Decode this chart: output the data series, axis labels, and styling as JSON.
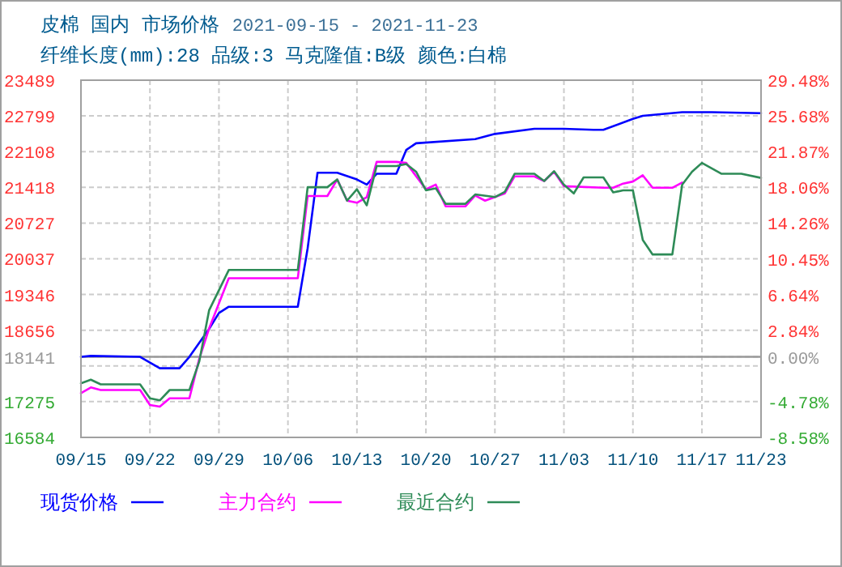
{
  "chart_data": {
    "type": "line",
    "title": "皮棉 国内 市场价格",
    "subtitle": "2021-09-15 - 2021-11-23",
    "annotations": [
      "纤维长度(mm):28 品级:3 马克隆值:B级 颜色:白棉"
    ],
    "xlim": [
      "2021-09-15",
      "2021-11-23"
    ],
    "xticks": [
      {
        "value": "2021-09-15",
        "label": "09/15"
      },
      {
        "value": "2021-09-22",
        "label": "09/22"
      },
      {
        "value": "2021-09-29",
        "label": "09/29"
      },
      {
        "value": "2021-10-06",
        "label": "10/06"
      },
      {
        "value": "2021-10-13",
        "label": "10/13"
      },
      {
        "value": "2021-10-20",
        "label": "10/20"
      },
      {
        "value": "2021-10-27",
        "label": "10/27"
      },
      {
        "value": "2021-11-03",
        "label": "11/03"
      },
      {
        "value": "2021-11-10",
        "label": "11/10"
      },
      {
        "value": "2021-11-17",
        "label": "11/17"
      },
      {
        "value": "2021-11-23",
        "label": "11/23"
      }
    ],
    "ylim": [
      16584,
      23489
    ],
    "yticks": [
      16584,
      17275,
      {
        "value": 17965,
        "label": null
      },
      18141,
      18656,
      19346,
      20037,
      20727,
      21418,
      22108,
      22799,
      23489
    ],
    "y2lim": [
      -8.58,
      29.48
    ],
    "y2ticks": [
      {
        "value": -8.58,
        "label": "-8.58%"
      },
      {
        "value": -4.78,
        "label": "-4.78%"
      },
      {
        "value": 0,
        "label": "0.00%"
      },
      {
        "value": 2.84,
        "label": "2.84%"
      },
      {
        "value": 6.64,
        "label": "6.64%"
      },
      {
        "value": 10.45,
        "label": "10.45%"
      },
      {
        "value": 14.26,
        "label": "14.26%"
      },
      {
        "value": 18.06,
        "label": "18.06%"
      },
      {
        "value": 21.87,
        "label": "21.87%"
      },
      {
        "value": 25.68,
        "label": "25.68%"
      },
      {
        "value": 29.48,
        "label": "29.48%"
      }
    ],
    "ref_lines": [
      {
        "axis": "y",
        "value": 18141,
        "color": "#999999"
      }
    ],
    "grid": true,
    "legend": "bottom",
    "series": [
      {
        "name": "现货价格",
        "color": "#0000ff",
        "x": [
          "2021-09-15",
          "2021-09-16",
          "2021-09-21",
          "2021-09-23",
          "2021-09-25",
          "2021-09-26",
          "2021-09-28",
          "2021-09-29",
          "2021-09-30",
          "2021-10-07",
          "2021-10-08",
          "2021-10-09",
          "2021-10-11",
          "2021-10-13",
          "2021-10-14",
          "2021-10-15",
          "2021-10-17",
          "2021-10-18",
          "2021-10-19",
          "2021-10-25",
          "2021-10-27",
          "2021-10-31",
          "2021-11-03",
          "2021-11-06",
          "2021-11-07",
          "2021-11-10",
          "2021-11-11",
          "2021-11-15",
          "2021-11-18",
          "2021-11-23"
        ],
        "values": [
          18141,
          18160,
          18141,
          17921,
          17921,
          18141,
          18680,
          18990,
          19110,
          19110,
          20240,
          21700,
          21700,
          21570,
          21470,
          21680,
          21680,
          22140,
          22270,
          22350,
          22450,
          22550,
          22550,
          22530,
          22530,
          22740,
          22800,
          22870,
          22870,
          22850
        ]
      },
      {
        "name": "主力合约",
        "color": "#ff00ff",
        "x": [
          "2021-09-15",
          "2021-09-16",
          "2021-09-17",
          "2021-09-21",
          "2021-09-22",
          "2021-09-23",
          "2021-09-24",
          "2021-09-26",
          "2021-09-27",
          "2021-09-28",
          "2021-09-30",
          "2021-10-07",
          "2021-10-08",
          "2021-10-10",
          "2021-10-11",
          "2021-10-12",
          "2021-10-13",
          "2021-10-14",
          "2021-10-15",
          "2021-10-17",
          "2021-10-18",
          "2021-10-20",
          "2021-10-21",
          "2021-10-22",
          "2021-10-24",
          "2021-10-25",
          "2021-10-26",
          "2021-10-27",
          "2021-10-28",
          "2021-10-29",
          "2021-10-31",
          "2021-11-01",
          "2021-11-02",
          "2021-11-03",
          "2021-11-07",
          "2021-11-08",
          "2021-11-09",
          "2021-11-10",
          "2021-11-11",
          "2021-11-12",
          "2021-11-14",
          "2021-11-15"
        ],
        "values": [
          17440,
          17550,
          17500,
          17500,
          17210,
          17180,
          17340,
          17340,
          18100,
          18690,
          19660,
          19660,
          21250,
          21250,
          21570,
          21160,
          21120,
          21230,
          21910,
          21910,
          21890,
          21380,
          21470,
          21050,
          21050,
          21260,
          21160,
          21230,
          21300,
          21630,
          21630,
          21540,
          21720,
          21440,
          21410,
          21410,
          21490,
          21530,
          21650,
          21410,
          21410,
          21510
        ]
      },
      {
        "name": "最近合约",
        "color": "#2e8b57",
        "x": [
          "2021-09-15",
          "2021-09-16",
          "2021-09-17",
          "2021-09-21",
          "2021-09-22",
          "2021-09-23",
          "2021-09-24",
          "2021-09-26",
          "2021-09-27",
          "2021-09-28",
          "2021-09-30",
          "2021-10-07",
          "2021-10-08",
          "2021-10-10",
          "2021-10-11",
          "2021-10-12",
          "2021-10-13",
          "2021-10-14",
          "2021-10-15",
          "2021-10-17",
          "2021-10-18",
          "2021-10-19",
          "2021-10-20",
          "2021-10-21",
          "2021-10-22",
          "2021-10-24",
          "2021-10-25",
          "2021-10-27",
          "2021-10-28",
          "2021-10-29",
          "2021-10-31",
          "2021-11-01",
          "2021-11-02",
          "2021-11-03",
          "2021-11-04",
          "2021-11-05",
          "2021-11-07",
          "2021-11-08",
          "2021-11-09",
          "2021-11-10",
          "2021-11-11",
          "2021-11-12",
          "2021-11-14",
          "2021-11-15",
          "2021-11-16",
          "2021-11-17",
          "2021-11-19",
          "2021-11-21",
          "2021-11-23"
        ],
        "values": [
          17630,
          17700,
          17610,
          17610,
          17340,
          17300,
          17500,
          17500,
          18050,
          19040,
          19820,
          19820,
          21420,
          21420,
          21570,
          21160,
          21380,
          21070,
          21830,
          21830,
          21870,
          21720,
          21360,
          21400,
          21100,
          21100,
          21280,
          21230,
          21330,
          21680,
          21680,
          21540,
          21730,
          21470,
          21300,
          21610,
          21610,
          21320,
          21360,
          21360,
          20400,
          20120,
          20120,
          21470,
          21720,
          21890,
          21680,
          21680,
          21600
        ]
      }
    ]
  }
}
